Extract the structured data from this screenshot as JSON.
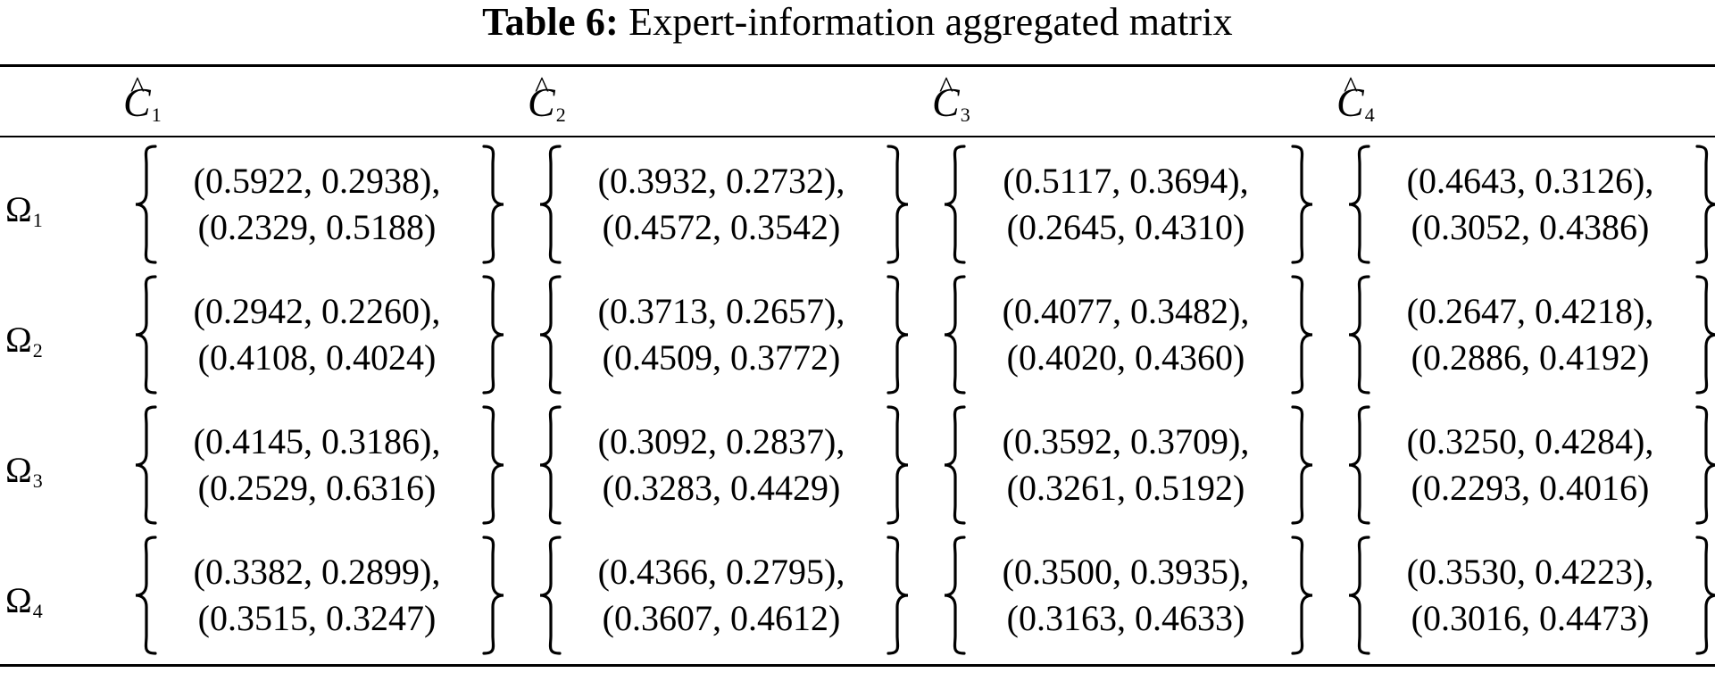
{
  "caption": {
    "label": "Table 6:",
    "title": "Expert-information aggregated matrix"
  },
  "columns": [
    {
      "symbol": "C",
      "subscript": "1",
      "hat": "^"
    },
    {
      "symbol": "C",
      "subscript": "2",
      "hat": "^"
    },
    {
      "symbol": "C",
      "subscript": "3",
      "hat": "^"
    },
    {
      "symbol": "C",
      "subscript": "4",
      "hat": "^"
    }
  ],
  "rows": [
    {
      "symbol": "Ω",
      "subscript": "1",
      "cells": [
        {
          "line1": "(0.5922, 0.2938),",
          "line2": "(0.2329, 0.5188)"
        },
        {
          "line1": "(0.3932, 0.2732),",
          "line2": "(0.4572, 0.3542)"
        },
        {
          "line1": "(0.5117, 0.3694),",
          "line2": "(0.2645, 0.4310)"
        },
        {
          "line1": "(0.4643, 0.3126),",
          "line2": "(0.3052, 0.4386)"
        }
      ]
    },
    {
      "symbol": "Ω",
      "subscript": "2",
      "cells": [
        {
          "line1": "(0.2942, 0.2260),",
          "line2": "(0.4108, 0.4024)"
        },
        {
          "line1": "(0.3713, 0.2657),",
          "line2": "(0.4509, 0.3772)"
        },
        {
          "line1": "(0.4077, 0.3482),",
          "line2": "(0.4020, 0.4360)"
        },
        {
          "line1": "(0.2647, 0.4218),",
          "line2": "(0.2886, 0.4192)"
        }
      ]
    },
    {
      "symbol": "Ω",
      "subscript": "3",
      "cells": [
        {
          "line1": "(0.4145, 0.3186),",
          "line2": "(0.2529, 0.6316)"
        },
        {
          "line1": "(0.3092, 0.2837),",
          "line2": "(0.3283, 0.4429)"
        },
        {
          "line1": "(0.3592, 0.3709),",
          "line2": "(0.3261, 0.5192)"
        },
        {
          "line1": "(0.3250, 0.4284),",
          "line2": "(0.2293, 0.4016)"
        }
      ]
    },
    {
      "symbol": "Ω",
      "subscript": "4",
      "cells": [
        {
          "line1": "(0.3382, 0.2899),",
          "line2": "(0.3515, 0.3247)"
        },
        {
          "line1": "(0.4366, 0.2795),",
          "line2": "(0.3607, 0.4612)"
        },
        {
          "line1": "(0.3500, 0.3935),",
          "line2": "(0.3163, 0.4633)"
        },
        {
          "line1": "(0.3530, 0.4223),",
          "line2": "(0.3016, 0.4473)"
        }
      ]
    }
  ]
}
